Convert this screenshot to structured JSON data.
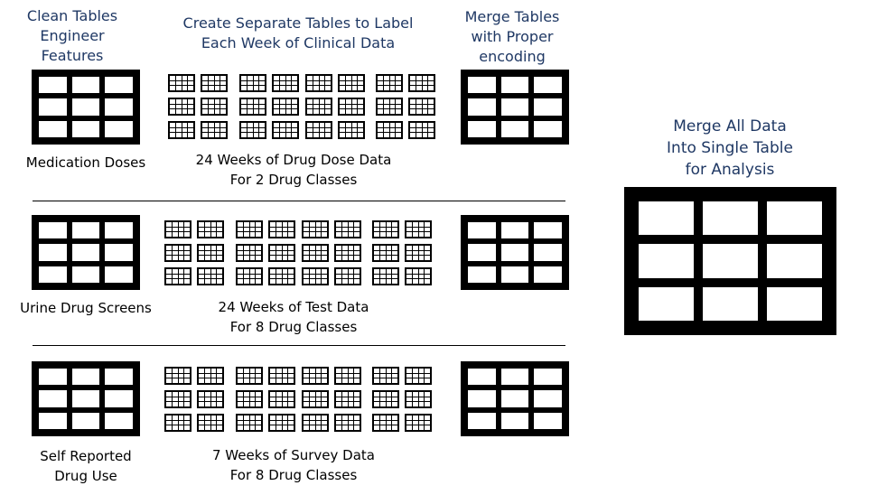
{
  "headers": {
    "clean": [
      "Clean Tables",
      "Engineer",
      "Features"
    ],
    "create": [
      "Create Separate Tables to Label",
      "Each Week of Clinical Data"
    ],
    "merge": [
      "Merge Tables",
      "with Proper",
      "encoding"
    ],
    "merge_all": [
      "Merge All Data",
      "Into Single Table",
      "for Analysis"
    ]
  },
  "rows": [
    {
      "source_label": [
        "Medication Doses"
      ],
      "weeks_label": [
        "24 Weeks of Drug Dose Data",
        "For 2 Drug Classes"
      ]
    },
    {
      "source_label": [
        "Urine Drug Screens"
      ],
      "weeks_label": [
        "24 Weeks of Test Data",
        "For 8 Drug Classes"
      ]
    },
    {
      "source_label": [
        "Self Reported",
        "Drug Use"
      ],
      "weeks_label": [
        "7 Weeks of Survey Data",
        "For 8 Drug Classes"
      ]
    }
  ],
  "colors": {
    "header_text": "#1f3864",
    "body_text": "#000000",
    "table_frame": "#000000"
  }
}
